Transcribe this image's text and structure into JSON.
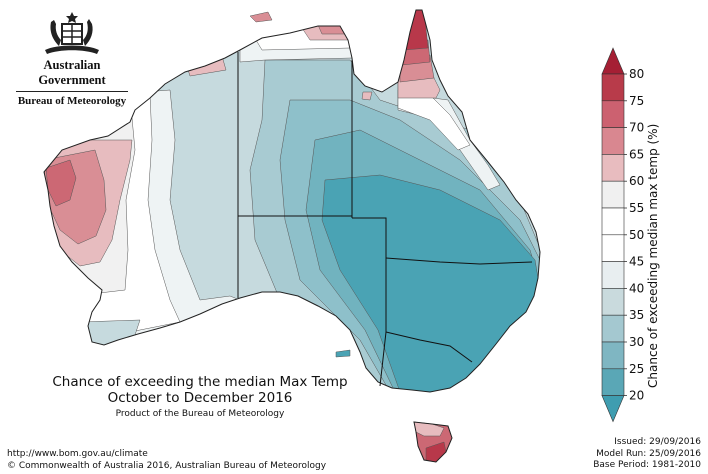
{
  "branding": {
    "government": "Australian Government",
    "bureau": "Bureau of Meteorology",
    "logo_icon": "commonwealth-coat-of-arms"
  },
  "title": {
    "line1": "Chance of exceeding the median Max Temp",
    "line2": "October to December 2016",
    "line3": "Product of the Bureau of Meteorology"
  },
  "footer": {
    "url": "http://www.bom.gov.au/climate",
    "copyright": "© Commonwealth of Australia 2016, Australian Bureau of Meteorology"
  },
  "issue_info": {
    "issued": "Issued: 29/09/2016",
    "model_run": "Model Run: 25/09/2016",
    "base_period": "Base Period: 1981-2010"
  },
  "legend": {
    "title": "Chance of exceeding median max temp (%)",
    "ticks": [
      "80",
      "75",
      "70",
      "65",
      "60",
      "55",
      "50",
      "45",
      "40",
      "35",
      "30",
      "25",
      "20"
    ],
    "colors": [
      "#b83b4a",
      "#cc6170",
      "#d98790",
      "#e8bcbf",
      "#f0f0f0",
      "#ffffff",
      "#ffffff",
      "#e8eef0",
      "#c9dadd",
      "#a4c8d0",
      "#7fb6c2",
      "#5aa7b6"
    ],
    "arrow_top_color": "#a51f34",
    "arrow_bottom_color": "#3f9db0"
  }
}
